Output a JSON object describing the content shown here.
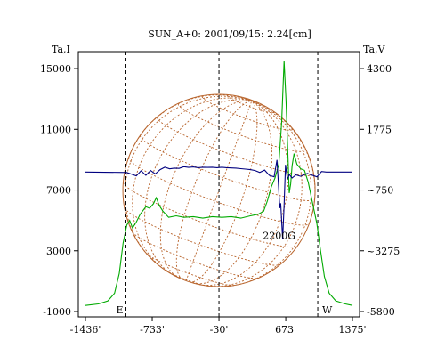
{
  "chart_data": {
    "type": "line",
    "title": "SUN_A+0: 2001/09/15: 2.24[cm]",
    "ylabel_left": "Ta,I",
    "ylabel_right": "Ta,V",
    "xlim": [
      -1436,
      1375
    ],
    "ylim_left": [
      -1000,
      16000
    ],
    "ylim_right": [
      -5800,
      5500
    ],
    "x_ticks": [
      {
        "value": -1436,
        "label": "-1436'"
      },
      {
        "value": -733,
        "label": "-733'"
      },
      {
        "value": -30,
        "label": "-30'"
      },
      {
        "value": 673,
        "label": "673'"
      },
      {
        "value": 1375,
        "label": "1375'"
      }
    ],
    "y_ticks_left": [
      {
        "value": 15000,
        "label": "15000"
      },
      {
        "value": 11000,
        "label": "11000"
      },
      {
        "value": 7000,
        "label": "7000"
      },
      {
        "value": 3000,
        "label": "3000"
      },
      {
        "value": -1000,
        "label": "-1000"
      }
    ],
    "y_ticks_right": [
      {
        "value": 4300,
        "label": "4300"
      },
      {
        "value": 1775,
        "label": "1775"
      },
      {
        "value": -750,
        "label": "~750"
      },
      {
        "value": -3275,
        "label": "~3275"
      },
      {
        "value": -5800,
        "label": "-5800"
      }
    ],
    "limb_markers": [
      {
        "x": -1010,
        "label": "E"
      },
      {
        "x": 1010,
        "label": "W"
      }
    ],
    "center_marker": {
      "x": -30
    },
    "annotations": [
      {
        "text": "2200G",
        "x": 600,
        "y_left": 4000
      }
    ],
    "disk": {
      "center_x": -30,
      "radius": 990,
      "color": "#b8642c"
    },
    "series": [
      {
        "axis": "left",
        "color": "#00aa00",
        "points": [
          [
            -1436,
            -600
          ],
          [
            -1300,
            -500
          ],
          [
            -1200,
            -300
          ],
          [
            -1130,
            200
          ],
          [
            -1080,
            1500
          ],
          [
            -1040,
            3500
          ],
          [
            -1000,
            4700
          ],
          [
            -970,
            5000
          ],
          [
            -940,
            4500
          ],
          [
            -900,
            4900
          ],
          [
            -860,
            5400
          ],
          [
            -800,
            5900
          ],
          [
            -760,
            5800
          ],
          [
            -720,
            6100
          ],
          [
            -690,
            6500
          ],
          [
            -660,
            6000
          ],
          [
            -620,
            5600
          ],
          [
            -560,
            5200
          ],
          [
            -480,
            5300
          ],
          [
            -400,
            5200
          ],
          [
            -300,
            5250
          ],
          [
            -200,
            5150
          ],
          [
            -100,
            5250
          ],
          [
            0,
            5200
          ],
          [
            100,
            5250
          ],
          [
            200,
            5150
          ],
          [
            300,
            5300
          ],
          [
            380,
            5400
          ],
          [
            440,
            5600
          ],
          [
            480,
            6300
          ],
          [
            520,
            7200
          ],
          [
            560,
            7800
          ],
          [
            600,
            8700
          ],
          [
            630,
            11500
          ],
          [
            655,
            15500
          ],
          [
            675,
            13000
          ],
          [
            695,
            9500
          ],
          [
            710,
            6800
          ],
          [
            725,
            7400
          ],
          [
            740,
            8600
          ],
          [
            760,
            9400
          ],
          [
            790,
            8700
          ],
          [
            830,
            8400
          ],
          [
            870,
            8300
          ],
          [
            910,
            7500
          ],
          [
            960,
            6000
          ],
          [
            1000,
            4800
          ],
          [
            1040,
            3000
          ],
          [
            1080,
            1300
          ],
          [
            1130,
            200
          ],
          [
            1200,
            -300
          ],
          [
            1300,
            -500
          ],
          [
            1375,
            -600
          ]
        ]
      },
      {
        "axis": "right",
        "color": "#000080",
        "points": [
          [
            -1436,
            0
          ],
          [
            -1000,
            -20
          ],
          [
            -900,
            -160
          ],
          [
            -850,
            50
          ],
          [
            -800,
            -140
          ],
          [
            -750,
            60
          ],
          [
            -700,
            -80
          ],
          [
            -650,
            100
          ],
          [
            -600,
            200
          ],
          [
            -550,
            130
          ],
          [
            -500,
            160
          ],
          [
            -450,
            150
          ],
          [
            -400,
            220
          ],
          [
            -350,
            190
          ],
          [
            -300,
            210
          ],
          [
            -250,
            180
          ],
          [
            -200,
            200
          ],
          [
            -150,
            190
          ],
          [
            -100,
            200
          ],
          [
            -50,
            180
          ],
          [
            0,
            200
          ],
          [
            50,
            180
          ],
          [
            100,
            170
          ],
          [
            150,
            160
          ],
          [
            200,
            140
          ],
          [
            250,
            120
          ],
          [
            300,
            100
          ],
          [
            350,
            60
          ],
          [
            400,
            -20
          ],
          [
            450,
            80
          ],
          [
            500,
            -140
          ],
          [
            550,
            -200
          ],
          [
            580,
            500
          ],
          [
            600,
            -800
          ],
          [
            610,
            -1500
          ],
          [
            620,
            -1300
          ],
          [
            640,
            -2800
          ],
          [
            655,
            -1400
          ],
          [
            670,
            300
          ],
          [
            690,
            -300
          ],
          [
            710,
            -100
          ],
          [
            740,
            -250
          ],
          [
            780,
            -120
          ],
          [
            830,
            -180
          ],
          [
            900,
            -60
          ],
          [
            1000,
            -200
          ],
          [
            1050,
            20
          ],
          [
            1100,
            0
          ],
          [
            1375,
            0
          ]
        ]
      }
    ]
  }
}
